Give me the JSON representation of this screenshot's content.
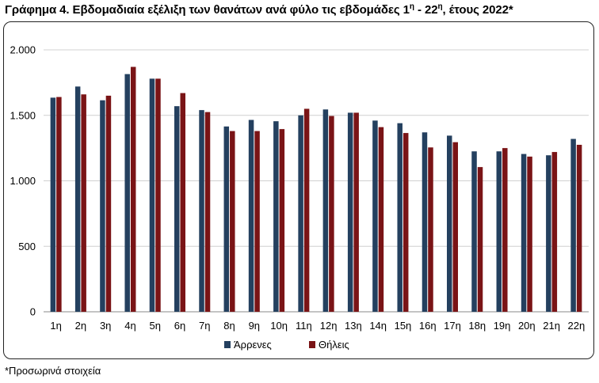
{
  "title": {
    "main": "Γράφημα 4. Εβδομαδιαία εξέλιξη των θανάτων ανά φύλο τις εβδομάδες 1",
    "sup1": "η",
    "mid": " - 22",
    "sup2": "η",
    "end": ", έτους 2022*"
  },
  "note": "*Προσωρινά στοιχεία",
  "colors": {
    "male": "#24405f",
    "female": "#7a1416",
    "grid": "#d0d0d0"
  },
  "chart_data": {
    "type": "bar",
    "categories": [
      "1η",
      "2η",
      "3η",
      "4η",
      "5η",
      "6η",
      "7η",
      "8η",
      "9η",
      "10η",
      "11η",
      "12η",
      "13η",
      "14η",
      "15η",
      "16η",
      "17η",
      "18η",
      "19η",
      "20η",
      "21η",
      "22η"
    ],
    "series": [
      {
        "name": "Άρρενες",
        "values": [
          1635,
          1720,
          1615,
          1815,
          1780,
          1570,
          1540,
          1415,
          1465,
          1455,
          1500,
          1545,
          1520,
          1460,
          1440,
          1370,
          1345,
          1225,
          1225,
          1205,
          1195,
          1320
        ]
      },
      {
        "name": "Θήλεις",
        "values": [
          1640,
          1660,
          1650,
          1870,
          1780,
          1670,
          1525,
          1380,
          1380,
          1395,
          1550,
          1495,
          1520,
          1410,
          1365,
          1255,
          1295,
          1105,
          1250,
          1185,
          1220,
          1275
        ]
      }
    ],
    "ylim": [
      0,
      2000
    ],
    "yticks": [
      0,
      500,
      1000,
      1500,
      2000
    ],
    "ytick_labels": [
      "0",
      "500",
      "1.000",
      "1.500",
      "2.000"
    ],
    "grid": true,
    "legend": "bottom-center"
  }
}
